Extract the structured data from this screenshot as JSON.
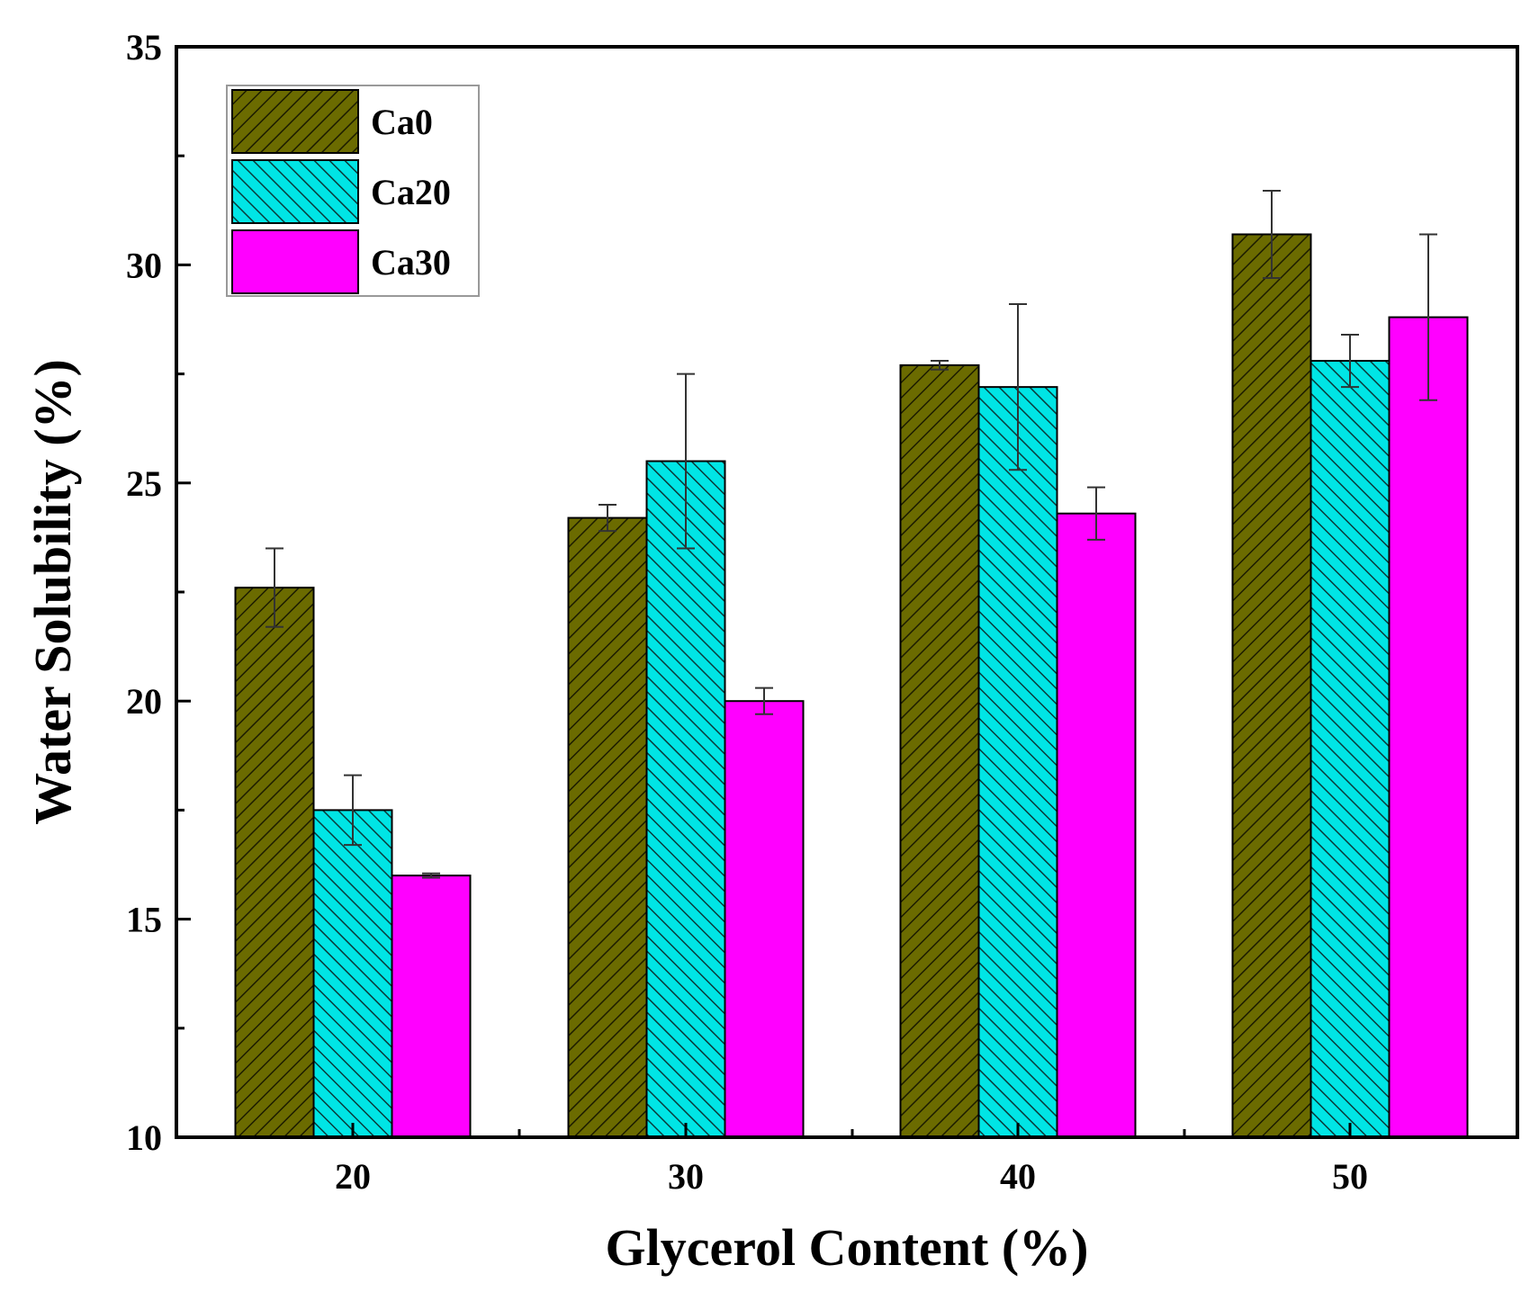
{
  "chart_data": {
    "type": "bar",
    "title": "",
    "xlabel": "Glycerol Content (%)",
    "ylabel": "Water Solubility (%)",
    "categories": [
      "20",
      "30",
      "40",
      "50"
    ],
    "ylim": [
      10,
      35
    ],
    "yticks": [
      "10",
      "15",
      "20",
      "25",
      "30",
      "35"
    ],
    "series": [
      {
        "name": "Ca0",
        "values": [
          22.6,
          24.2,
          27.7,
          30.7
        ],
        "errors": [
          0.9,
          0.3,
          0.1,
          1.0
        ],
        "color": "#6b6b00",
        "pattern": "hatch-forward"
      },
      {
        "name": "Ca20",
        "values": [
          17.5,
          25.5,
          27.2,
          27.8
        ],
        "errors": [
          0.8,
          2.0,
          1.9,
          0.6
        ],
        "color": "#00e5e5",
        "pattern": "hatch-back"
      },
      {
        "name": "Ca30",
        "values": [
          16.0,
          20.0,
          24.3,
          28.8
        ],
        "errors": [
          0.05,
          0.3,
          0.6,
          1.9
        ],
        "color": "#ff00ff",
        "pattern": "solid"
      }
    ],
    "legend_position": "top-left",
    "grid": false
  }
}
